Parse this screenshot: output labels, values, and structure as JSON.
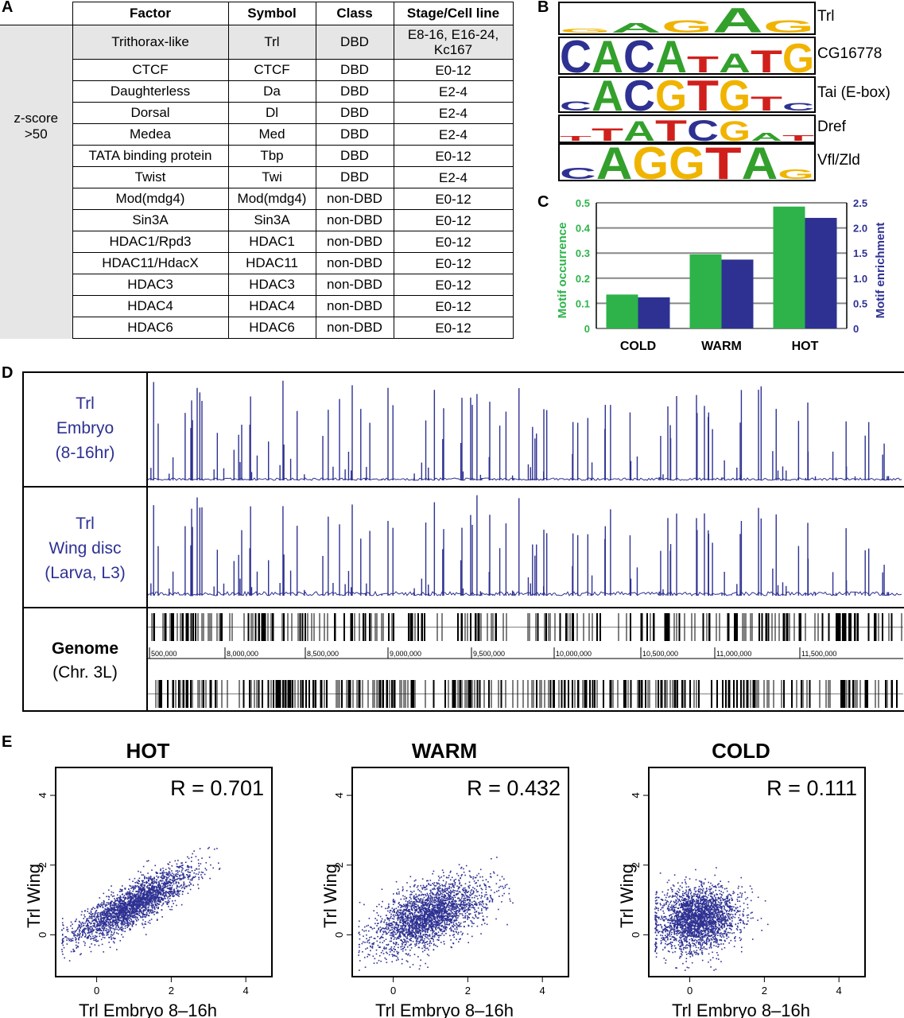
{
  "panel_letters": {
    "a": "A",
    "b": "B",
    "c": "C",
    "d": "D",
    "e": "E"
  },
  "table": {
    "headers": [
      "Factor",
      "Symbol",
      "Class",
      "Stage/Cell line"
    ],
    "group_label_1": "z-score",
    "group_label_2": ">50",
    "rows": [
      {
        "factor": "Trithorax-like",
        "symbol": "Trl",
        "class": "DBD",
        "stage_1": "E8-16, E16-24,",
        "stage_2": "Kc167"
      },
      {
        "factor": "CTCF",
        "symbol": "CTCF",
        "class": "DBD",
        "stage_1": "E0-12"
      },
      {
        "factor": "Daughterless",
        "symbol": "Da",
        "class": "DBD",
        "stage_1": "E2-4"
      },
      {
        "factor": "Dorsal",
        "symbol": "Dl",
        "class": "DBD",
        "stage_1": "E2-4"
      },
      {
        "factor": "Medea",
        "symbol": "Med",
        "class": "DBD",
        "stage_1": "E2-4"
      },
      {
        "factor": "TATA binding protein",
        "symbol": "Tbp",
        "class": "DBD",
        "stage_1": "E0-12"
      },
      {
        "factor": "Twist",
        "symbol": "Twi",
        "class": "DBD",
        "stage_1": "E2-4"
      },
      {
        "factor": "Mod(mdg4)",
        "symbol": "Mod(mdg4)",
        "class": "non-DBD",
        "stage_1": "E0-12"
      },
      {
        "factor": "Sin3A",
        "symbol": "Sin3A",
        "class": "non-DBD",
        "stage_1": "E0-12"
      },
      {
        "factor": "HDAC1/Rpd3",
        "symbol": "HDAC1",
        "class": "non-DBD",
        "stage_1": "E0-12"
      },
      {
        "factor": "HDAC11/HdacX",
        "symbol": "HDAC11",
        "class": "non-DBD",
        "stage_1": "E0-12"
      },
      {
        "factor": "HDAC3",
        "symbol": "HDAC3",
        "class": "non-DBD",
        "stage_1": "E0-12"
      },
      {
        "factor": "HDAC4",
        "symbol": "HDAC4",
        "class": "non-DBD",
        "stage_1": "E0-12"
      },
      {
        "factor": "HDAC6",
        "symbol": "HDAC6",
        "class": "non-DBD",
        "stage_1": "E0-12"
      }
    ]
  },
  "motifs": {
    "labels": [
      "Trl",
      "CG16778",
      "Tai (E-box)",
      "Dref",
      "Vfl/Zld"
    ],
    "sequences": [
      "GAGAG",
      "CACATATG",
      "CACGTGTC",
      "TTATCGAT",
      "CAGGTAG"
    ],
    "base_colors": {
      "A": "#33a02c",
      "C": "#2e3192",
      "G": "#f0b400",
      "T": "#d0201c"
    }
  },
  "chart_data": [
    {
      "type": "bar",
      "panel": "C",
      "categories": [
        "COLD",
        "WARM",
        "HOT"
      ],
      "series": [
        {
          "name": "Motif occurrence",
          "axis": "left",
          "color": "#2db34a",
          "values": [
            0.135,
            0.295,
            0.485
          ]
        },
        {
          "name": "Motif enrichment",
          "axis": "right",
          "color": "#2e3192",
          "values": [
            0.62,
            1.37,
            2.2
          ]
        }
      ],
      "ylabel": "Motif occurrence",
      "y2label": "Motif enrichment",
      "ylim": [
        0,
        0.5
      ],
      "y2lim": [
        0,
        2.5
      ],
      "yticks": [
        "0",
        "0.1",
        "0.2",
        "0.3",
        "0.4",
        "0.5"
      ],
      "y2ticks": [
        "0",
        "0.5",
        "1.0",
        "1.5",
        "2.0",
        "2.5"
      ],
      "grid": true
    },
    {
      "type": "scatter",
      "panel": "E",
      "title": "HOT",
      "annotation": "R = 0.701",
      "xlabel": "Trl Embryo 8–16h",
      "ylabel": "Trl Wing",
      "xticks": [
        "0",
        "2",
        "4"
      ],
      "yticks": [
        "0",
        "2",
        "4"
      ],
      "xlim": [
        -1.1,
        4.7
      ],
      "ylim": [
        -1.2,
        4.8
      ],
      "correlation": 0.701
    },
    {
      "type": "scatter",
      "panel": "E",
      "title": "WARM",
      "annotation": "R = 0.432",
      "xlabel": "Trl Embryo 8–16h",
      "ylabel": "Trl Wing",
      "xticks": [
        "0",
        "2",
        "4"
      ],
      "yticks": [
        "0",
        "2",
        "4"
      ],
      "xlim": [
        -1.1,
        4.7
      ],
      "ylim": [
        -1.2,
        4.8
      ],
      "correlation": 0.432
    },
    {
      "type": "scatter",
      "panel": "E",
      "title": "COLD",
      "annotation": "R = 0.111",
      "xlabel": "Trl Embryo 8–16h",
      "ylabel": "Trl Wing",
      "xticks": [
        "0",
        "2",
        "4"
      ],
      "yticks": [
        "0",
        "2",
        "4"
      ],
      "xlim": [
        -1.1,
        4.7
      ],
      "ylim": [
        -1.2,
        4.8
      ],
      "correlation": 0.111
    }
  ],
  "genome_browser": {
    "track1": {
      "line1": "Trl",
      "line2": "Embryo",
      "line3": "(8-16hr)"
    },
    "track2": {
      "line1": "Trl",
      "line2": "Wing disc",
      "line3": "(Larva, L3)"
    },
    "genome": {
      "line1": "Genome",
      "line2": "(Chr. 3L)"
    },
    "ruler_ticks": [
      "500,000",
      "8,000,000",
      "8,500,000",
      "9,000,000",
      "9,500,000",
      "10,000,000",
      "10,500,000",
      "11,000,000",
      "11,500,000"
    ],
    "signal_color": "#2e3192"
  }
}
